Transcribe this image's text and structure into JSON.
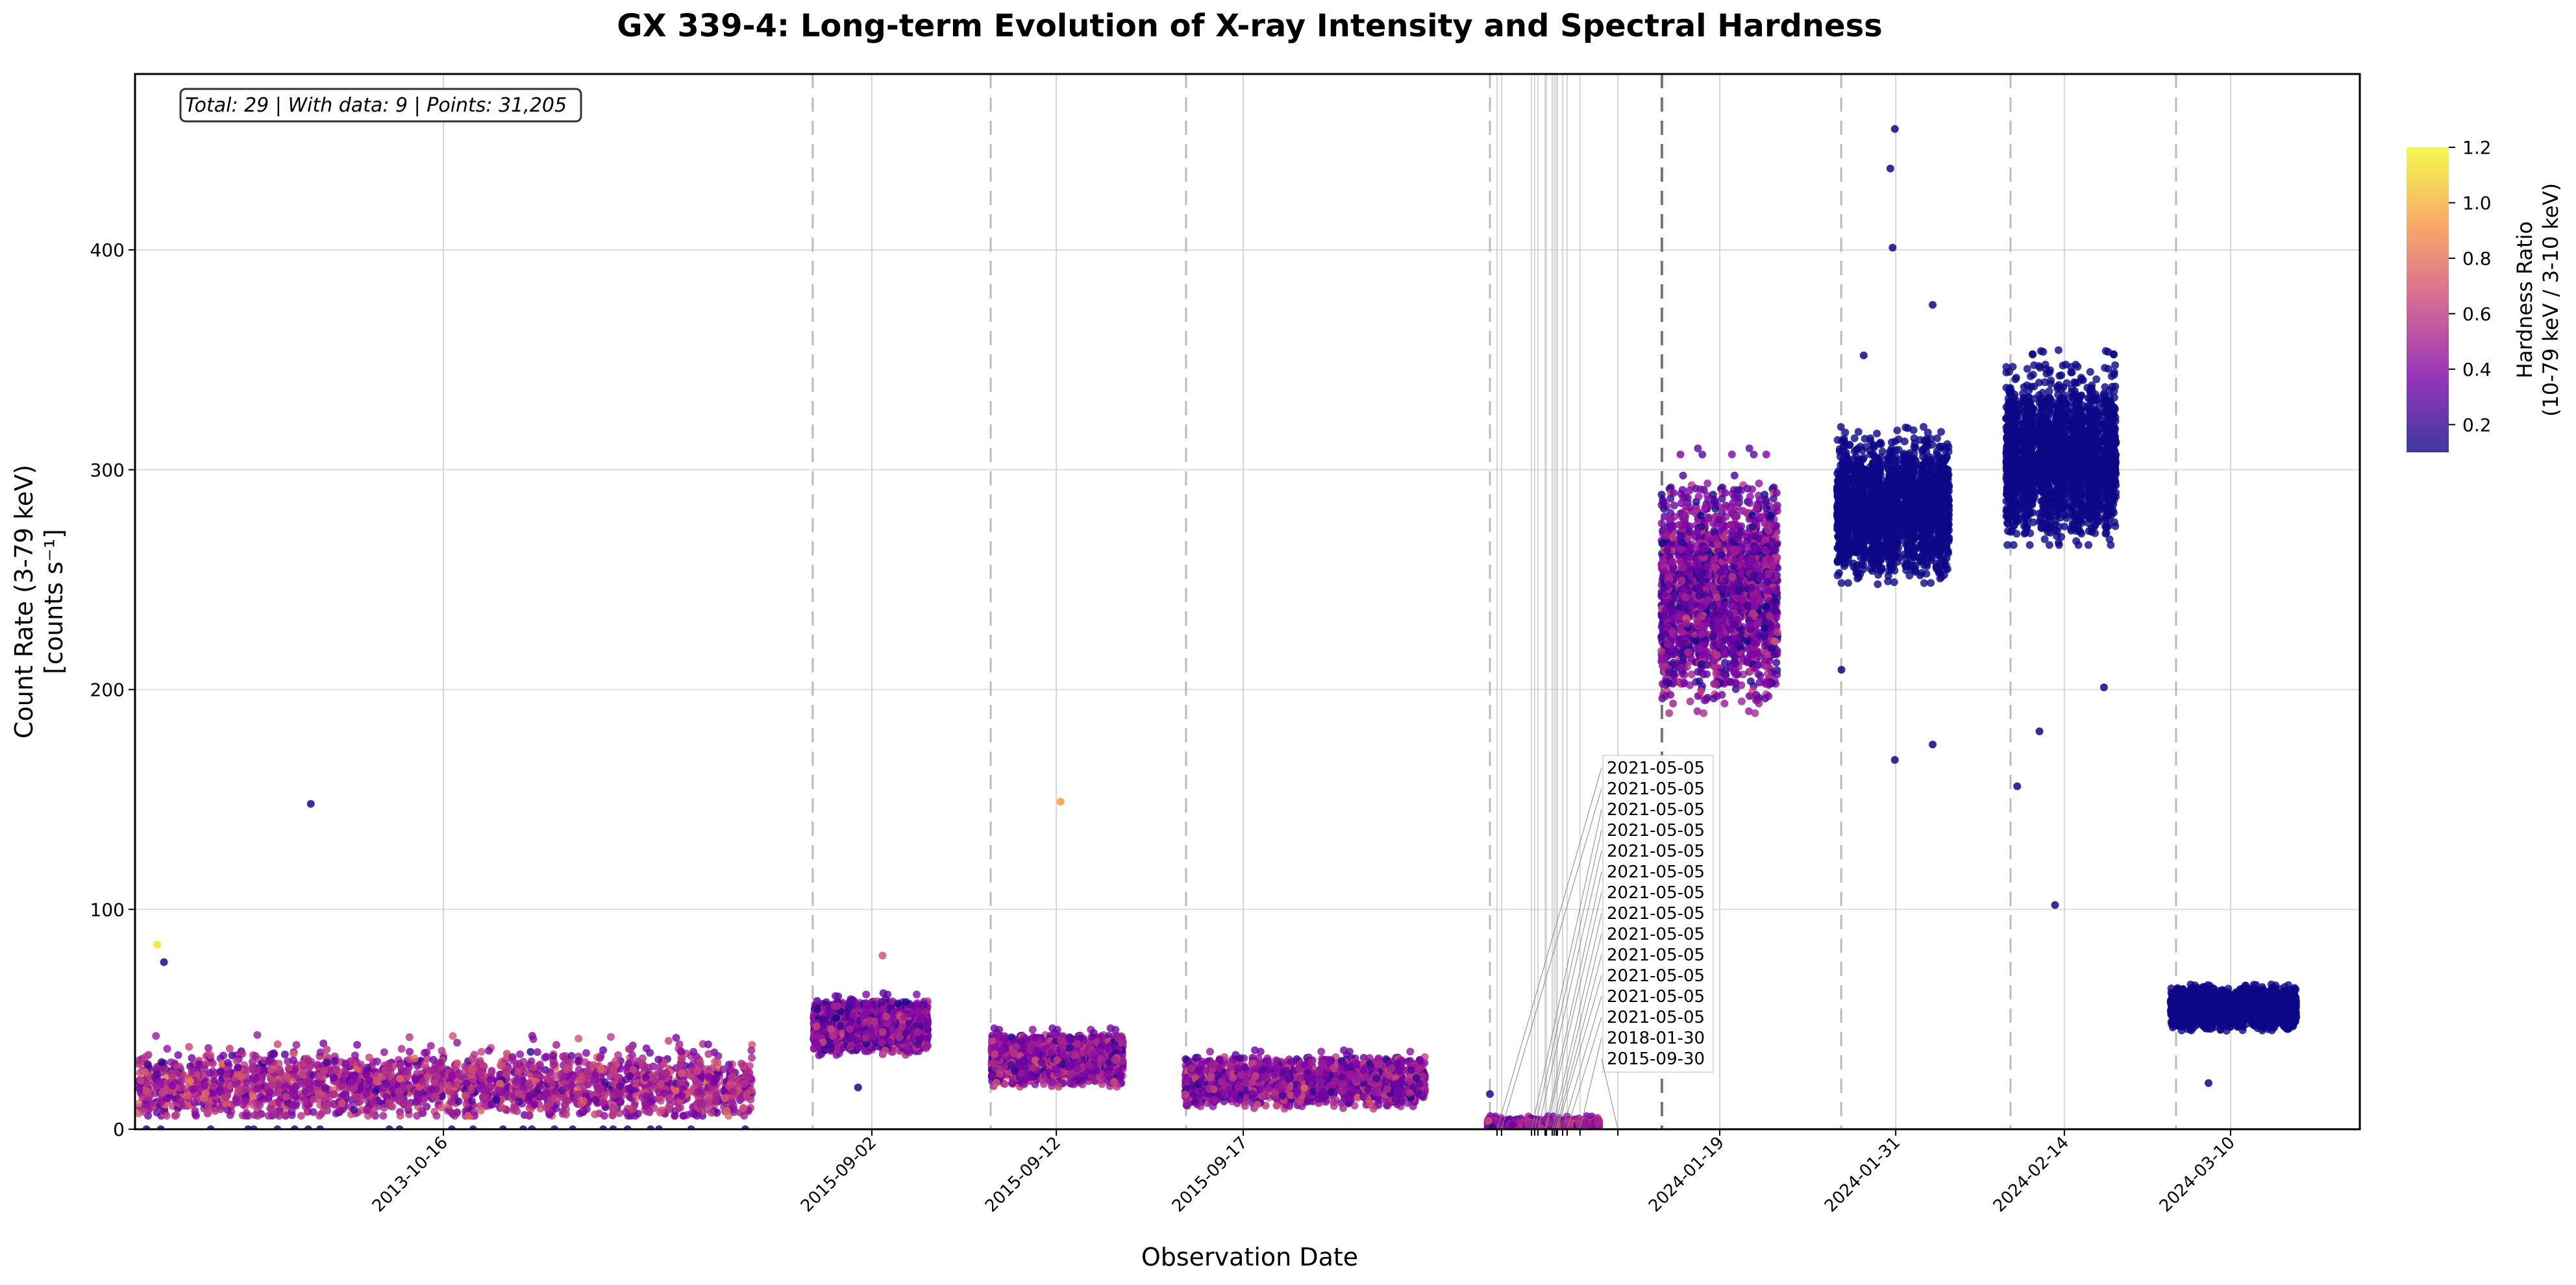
{
  "chart_data": {
    "type": "scatter",
    "title": "GX 339-4: Long-term Evolution of X-ray Intensity and Spectral Hardness",
    "xlabel": "Observation Date",
    "ylabel": [
      "Count Rate (3-79 keV)",
      "[counts s⁻¹]"
    ],
    "ylim": [
      0,
      480
    ],
    "xlim": [
      0,
      100
    ],
    "yticks": [
      0,
      100,
      200,
      300,
      400
    ],
    "grid": true,
    "annotation": "Total: 29 | With data: 9 | Points: 31,205",
    "colorbar": {
      "label": [
        "Hardness Ratio",
        "(10-79 keV / 3-10 keV)"
      ],
      "range": [
        0.1,
        1.2
      ],
      "ticks": [
        "0.2",
        "0.4",
        "0.6",
        "0.8",
        "1.0",
        "1.2"
      ],
      "colormap": "plasma",
      "colormap_stops": [
        "#0d0887",
        "#7e03a8",
        "#cc4778",
        "#f89540",
        "#f0f921"
      ]
    },
    "xticks": [
      {
        "x": 13.86,
        "label": "2013-10-16"
      },
      {
        "x": 33.12,
        "label": "2015-09-02"
      },
      {
        "x": 41.41,
        "label": "2015-09-12"
      },
      {
        "x": 49.81,
        "label": "2015-09-17"
      },
      {
        "x": 61.22,
        "label": "2021-05-05"
      },
      {
        "x": 61.42,
        "label": "2021-05-05"
      },
      {
        "x": 62.77,
        "label": "2021-05-05"
      },
      {
        "x": 62.91,
        "label": "2021-05-05"
      },
      {
        "x": 63.06,
        "label": "2021-05-05"
      },
      {
        "x": 63.38,
        "label": "2021-05-05"
      },
      {
        "x": 63.44,
        "label": "2021-05-05"
      },
      {
        "x": 63.7,
        "label": "2021-05-05"
      },
      {
        "x": 63.79,
        "label": "2021-05-05"
      },
      {
        "x": 63.88,
        "label": "2021-05-05"
      },
      {
        "x": 63.93,
        "label": "2021-05-05"
      },
      {
        "x": 64.17,
        "label": "2021-05-05"
      },
      {
        "x": 64.37,
        "label": "2021-05-05"
      },
      {
        "x": 64.95,
        "label": "2018-01-30"
      },
      {
        "x": 66.65,
        "label": "2015-09-30"
      },
      {
        "x": 71.23,
        "label": "2024-01-19"
      },
      {
        "x": 79.14,
        "label": "2024-01-31"
      },
      {
        "x": 86.72,
        "label": "2024-02-14"
      },
      {
        "x": 94.19,
        "label": "2024-03-10"
      }
    ],
    "observation_boundaries": [
      30.46,
      38.46,
      47.24,
      60.9,
      68.63,
      76.69,
      84.3,
      91.74
    ],
    "series": [
      {
        "observation": "2013-10-16",
        "x_range": [
          0.15,
          27.9
        ],
        "segments": 38,
        "count_rate_median": 20,
        "count_rate_range": [
          8,
          45
        ],
        "hardness_mean": 0.5,
        "outliers": [
          [
            1.0,
            84,
            1.15
          ],
          [
            1.3,
            76,
            0.15
          ],
          [
            7.9,
            148,
            0.15
          ]
        ]
      },
      {
        "observation": "2015-09-02",
        "x_range": [
          30.5,
          35.8
        ],
        "segments": 7,
        "count_rate_median": 47,
        "count_rate_range": [
          35,
          62
        ],
        "hardness_mean": 0.38,
        "outliers": [
          [
            33.6,
            79,
            0.7
          ],
          [
            32.5,
            19,
            0.15
          ]
        ]
      },
      {
        "observation": "2015-09-12",
        "x_range": [
          38.5,
          44.6
        ],
        "segments": 7,
        "count_rate_median": 32,
        "count_rate_range": [
          20,
          46
        ],
        "hardness_mean": 0.42,
        "outliers": [
          [
            41.6,
            149,
            0.95
          ]
        ]
      },
      {
        "observation": "2015-09-17",
        "x_range": [
          47.2,
          58.2
        ],
        "segments": 11,
        "count_rate_median": 22,
        "count_rate_range": [
          10,
          36
        ],
        "hardness_mean": 0.42,
        "outliers": []
      },
      {
        "observation": "2021-05-05",
        "x_range": [
          60.8,
          66.0
        ],
        "segments": 6,
        "count_rate_median": 2,
        "count_rate_range": [
          0,
          6
        ],
        "hardness_mean": 0.45,
        "outliers": [
          [
            60.9,
            16,
            0.15
          ]
        ]
      },
      {
        "observation": "2024-01-19",
        "x_range": [
          68.6,
          74.0
        ],
        "segments": 7,
        "count_rate_median": 245,
        "count_rate_range": [
          195,
          310
        ],
        "hardness_mean": 0.36,
        "outliers": []
      },
      {
        "observation": "2024-01-31",
        "x_range": [
          76.5,
          81.7
        ],
        "segments": 7,
        "count_rate_median": 282,
        "count_rate_range": [
          250,
          320
        ],
        "hardness_mean": 0.1,
        "outliers": [
          [
            79.1,
            455,
            0.1
          ],
          [
            78.9,
            437,
            0.1
          ],
          [
            79.0,
            401,
            0.1
          ],
          [
            77.7,
            352,
            0.1
          ],
          [
            80.8,
            375,
            0.1
          ],
          [
            79.1,
            168,
            0.1
          ],
          [
            80.8,
            175,
            0.1
          ],
          [
            76.7,
            209,
            0.1
          ]
        ]
      },
      {
        "observation": "2024-02-14",
        "x_range": [
          84.1,
          89.2
        ],
        "segments": 7,
        "count_rate_median": 305,
        "count_rate_range": [
          270,
          355
        ],
        "hardness_mean": 0.1,
        "outliers": [
          [
            84.6,
            156,
            0.1
          ],
          [
            85.6,
            181,
            0.1
          ],
          [
            86.3,
            102,
            0.1
          ],
          [
            88.5,
            201,
            0.1
          ]
        ]
      },
      {
        "observation": "2024-03-10",
        "x_range": [
          91.5,
          97.3
        ],
        "segments": 8,
        "count_rate_median": 55,
        "count_rate_range": [
          45,
          66
        ],
        "hardness_mean": 0.1,
        "outliers": [
          [
            93.2,
            21,
            0.1
          ]
        ]
      }
    ]
  }
}
